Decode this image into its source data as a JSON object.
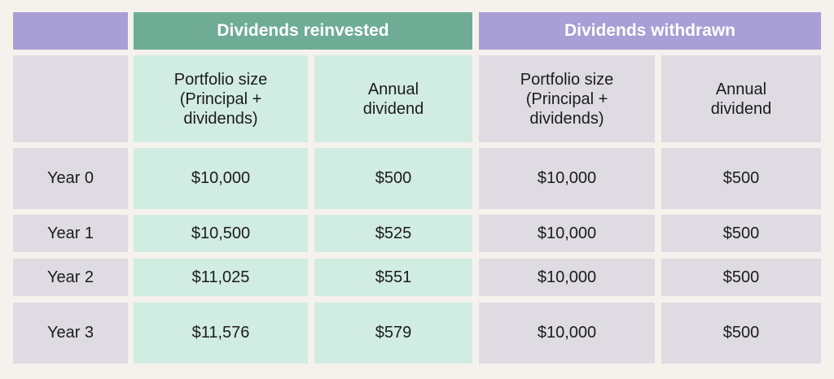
{
  "colors": {
    "background": "#f5f2ee",
    "reinvested_header": "#6fac95",
    "reinvested_cell": "#d1ece2",
    "withdrawn_header": "#a79fd5",
    "withdrawn_cell": "#dedbe3"
  },
  "groups": {
    "reinvested": "Dividends reinvested",
    "withdrawn": "Dividends withdrawn"
  },
  "columns": {
    "reinvested_portfolio": "Portfolio size\n(Principal +\ndividends)",
    "reinvested_dividend": "Annual\ndividend",
    "withdrawn_portfolio": "Portfolio size\n(Principal +\ndividends)",
    "withdrawn_dividend": "Annual\ndividend"
  },
  "rows": [
    {
      "label": "Year 0",
      "re_portfolio": "$10,000",
      "re_dividend": "$500",
      "wd_portfolio": "$10,000",
      "wd_dividend": "$500"
    },
    {
      "label": "Year 1",
      "re_portfolio": "$10,500",
      "re_dividend": "$525",
      "wd_portfolio": "$10,000",
      "wd_dividend": "$500"
    },
    {
      "label": "Year 2",
      "re_portfolio": "$11,025",
      "re_dividend": "$551",
      "wd_portfolio": "$10,000",
      "wd_dividend": "$500"
    },
    {
      "label": "Year 3",
      "re_portfolio": "$11,576",
      "re_dividend": "$579",
      "wd_portfolio": "$10,000",
      "wd_dividend": "$500"
    }
  ]
}
